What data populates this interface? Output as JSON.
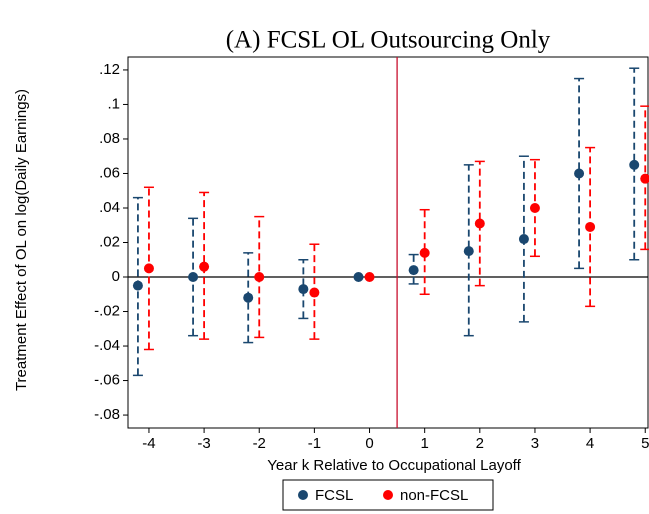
{
  "chart_data": {
    "type": "errorbar",
    "title": "(A) FCSL OL Outsourcing Only",
    "x_label": "Year k Relative to Occupational Layoff",
    "y_label": "Treatment Effect of OL on log(Daily Earnings)",
    "x": [
      -4,
      -3,
      -2,
      -1,
      0,
      1,
      2,
      3,
      4,
      5
    ],
    "series": [
      {
        "name": "FCSL",
        "color": "#1a476f",
        "values": [
          -0.005,
          0.0,
          -0.012,
          -0.007,
          0.0,
          0.004,
          0.015,
          0.022,
          0.06,
          0.065
        ],
        "lower": [
          -0.057,
          -0.034,
          -0.038,
          -0.024,
          null,
          -0.004,
          -0.034,
          -0.026,
          0.005,
          0.01
        ],
        "upper": [
          0.046,
          0.034,
          0.014,
          0.01,
          null,
          0.013,
          0.065,
          0.07,
          0.115,
          0.121
        ]
      },
      {
        "name": "non-FCSL",
        "color": "#ff0000",
        "values": [
          0.005,
          0.006,
          0.0,
          -0.009,
          0.0,
          0.014,
          0.031,
          0.04,
          0.029,
          0.057
        ],
        "lower": [
          -0.042,
          -0.036,
          -0.035,
          -0.036,
          null,
          -0.01,
          -0.005,
          0.012,
          -0.017,
          0.016
        ],
        "upper": [
          0.052,
          0.049,
          0.035,
          0.019,
          null,
          0.039,
          0.067,
          0.068,
          0.075,
          0.099
        ]
      }
    ],
    "xlim": [
      -4.38,
      5.05
    ],
    "xticks": [
      -4,
      -3,
      -2,
      -1,
      0,
      1,
      2,
      3,
      4,
      5
    ],
    "ylim": [
      -0.0875,
      0.1275
    ],
    "yticks": [
      {
        "value": -0.08,
        "label": "-.08"
      },
      {
        "value": -0.06,
        "label": "-.06"
      },
      {
        "value": -0.04,
        "label": "-.04"
      },
      {
        "value": -0.02,
        "label": "-.02"
      },
      0,
      {
        "value": 0.02,
        "label": ".02"
      },
      {
        "value": 0.04,
        "label": ".04"
      },
      {
        "value": 0.06,
        "label": ".06"
      },
      {
        "value": 0.08,
        "label": ".08"
      },
      {
        "value": 0.1,
        "label": ".1"
      },
      {
        "value": 0.12,
        "label": ".12"
      }
    ],
    "hline": 0,
    "vline": 0.5,
    "vline_color": "#c8102e",
    "legend": "bottom"
  }
}
